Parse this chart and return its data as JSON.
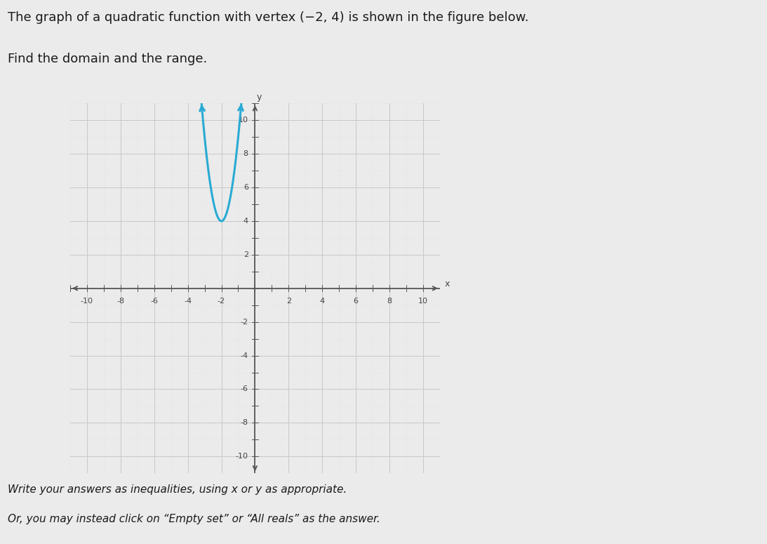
{
  "title_line1": "The graph of a quadratic function with vertex (−2, 4) is shown in the figure below.",
  "title_line2": "Find the domain and the range.",
  "footer_line1": "Write your answers as inequalities, using x or y as appropriate.",
  "footer_line2": "Or, you may instead click on “Empty set” or “All reals” as the answer.",
  "vertex_x": -2,
  "vertex_y": 4,
  "parabola_a": 5.0,
  "x_range": [
    -11,
    11
  ],
  "y_range": [
    -11,
    11
  ],
  "x_ticks": [
    -10,
    -8,
    -6,
    -4,
    -2,
    2,
    4,
    6,
    8,
    10
  ],
  "y_ticks": [
    -10,
    -8,
    -6,
    -4,
    -2,
    2,
    4,
    6,
    8,
    10
  ],
  "curve_color": "#29ABD4",
  "curve_linewidth": 2.2,
  "grid_major_color": "#C8C8C8",
  "grid_minor_color": "#DCDCDC",
  "axis_color": "#555555",
  "background_color": "#EBEBEB",
  "plot_bg_color": "#E8E8E8",
  "border_color": "#AAAAAA",
  "tick_fontsize": 8,
  "title_fontsize": 13,
  "footer_fontsize": 11
}
